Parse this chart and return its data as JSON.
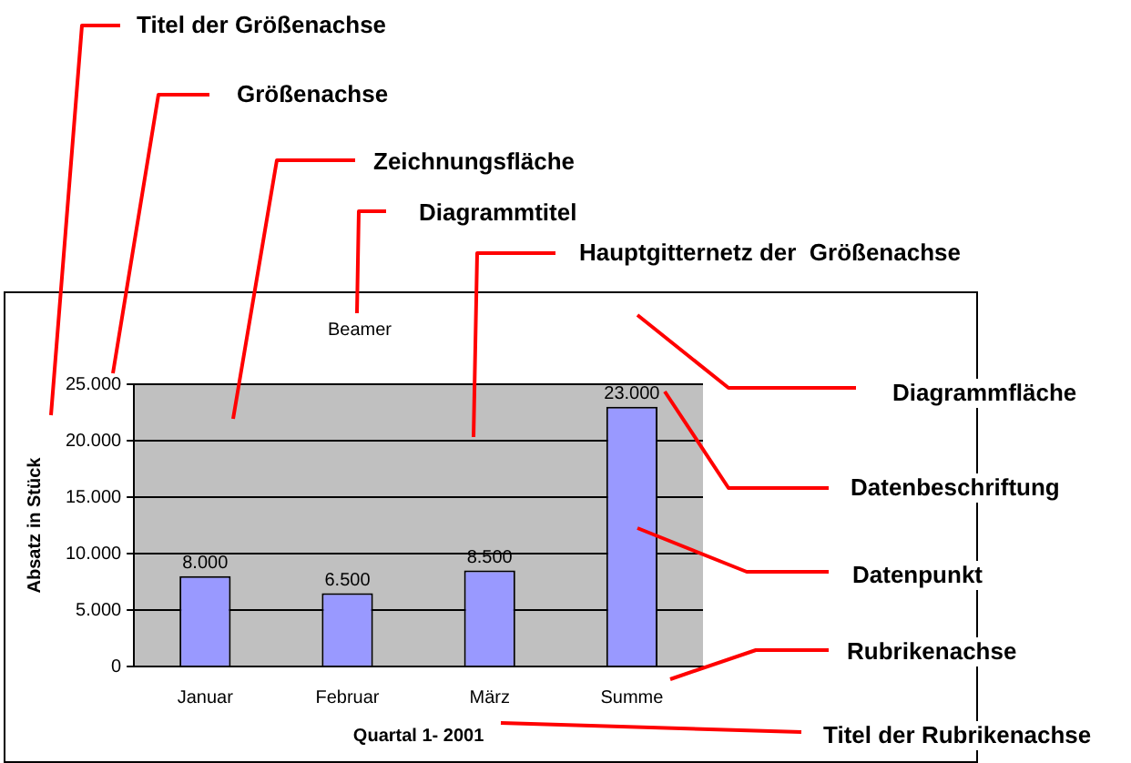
{
  "chart_data": {
    "type": "bar",
    "title": "Beamer",
    "categories": [
      "Januar",
      "Februar",
      "März",
      "Summe"
    ],
    "values": [
      8000,
      6500,
      8500,
      23000
    ],
    "color": "#9999ff",
    "value_labels": [
      "8.000",
      "6.500",
      "8.500",
      "23.000"
    ],
    "ylim": [
      0,
      25000
    ],
    "yticks": [
      {
        "value": 0,
        "label": "0"
      },
      {
        "value": 5000,
        "label": "5.000"
      },
      {
        "value": 10000,
        "label": "10.000"
      },
      {
        "value": 15000,
        "label": "15.000"
      },
      {
        "value": 20000,
        "label": "20.000"
      },
      {
        "value": 25000,
        "label": "25.000"
      }
    ],
    "ylabel": "Absatz in Stück",
    "xlabel": "Quartal 1- 2001",
    "grid": "y",
    "legend": false,
    "annotations": [
      "Titel der Größenachse",
      "Größenachse",
      "Zeichnungsfläche",
      "Diagrammtitel",
      "Hauptgitternetz der  Größenachse",
      "Diagrammfläche",
      "Datenbeschriftung",
      "Datenpunkt",
      "Rubrikenachse",
      "Titel der Rubrikenachse"
    ]
  }
}
